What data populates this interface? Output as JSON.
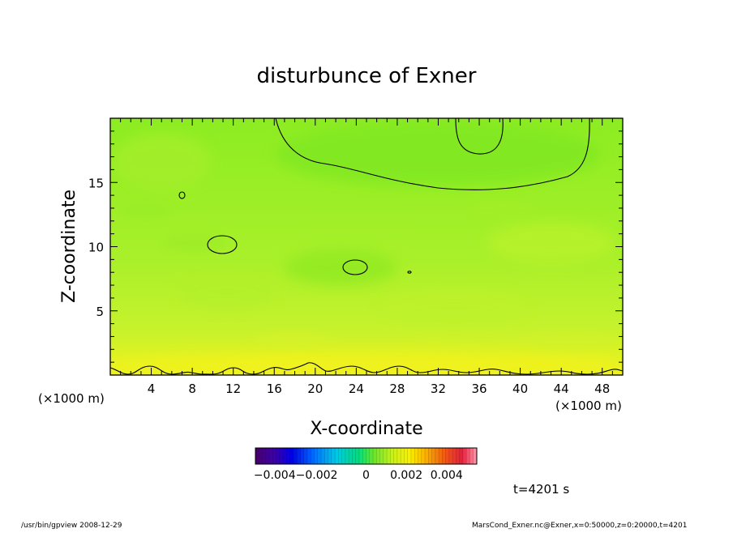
{
  "chart_data": {
    "type": "heatmap",
    "title": "disturbunce of Exner",
    "xlabel": "X-coordinate",
    "ylabel": "Z-coordinate",
    "x_unit_left": "(×1000 m)",
    "x_unit_right": "(×1000 m)",
    "xlim": [
      0,
      50
    ],
    "ylim": [
      0,
      20
    ],
    "x_ticks": [
      4,
      8,
      12,
      16,
      20,
      24,
      28,
      32,
      36,
      40,
      44,
      48
    ],
    "y_ticks": [
      5,
      10,
      15
    ],
    "colorbar": {
      "min": -0.0055,
      "max": 0.0055,
      "ticks": [
        {
          "value": -0.0035,
          "label": "−0.004−0.002"
        },
        {
          "value": 0,
          "label": "0"
        },
        {
          "value": 0.002,
          "label": "0.002"
        },
        {
          "value": 0.004,
          "label": "0.004"
        }
      ]
    },
    "field_description_values": {
      "surface_layer_value": 0.0012,
      "upper_right_value": -0.0002,
      "background_value": 0.0004
    },
    "time_label": "t=4201 s"
  },
  "footer": {
    "left": "/usr/bin/gpview   2008-12-29",
    "right": "MarsCond_Exner.nc@Exner,x=0:50000,z=0:20000,t=4201"
  }
}
